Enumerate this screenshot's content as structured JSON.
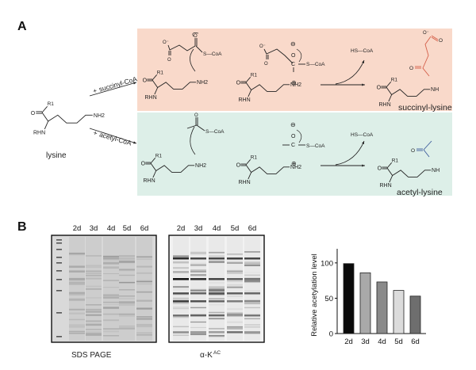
{
  "panels": {
    "a": "A",
    "b": "B"
  },
  "colors": {
    "succinyl_box": "#f9d9ca",
    "acetyl_box": "#ddefe8",
    "succinyl_text": "#d5604a",
    "acetyl_text": "#3d5c9c"
  },
  "reaction": {
    "substrate_label": "lysine",
    "succinyl_reagent": "succinyl-CoA",
    "acetyl_reagent": "acetyl-CoA",
    "plus": "+",
    "succinyl_product": "succinyl-lysine",
    "acetyl_product": "acetyl-lysine",
    "atoms": {
      "r1": "R1",
      "o": "O",
      "o_minus": "O⁻",
      "rhn": "RHN",
      "nh2": "NH2",
      "nh": "NH",
      "c": "C",
      "s_coa": "S—CoA",
      "hs_coa": "HS—CoA",
      "minus": "⊖",
      "plus": "⊕"
    }
  },
  "gels": {
    "lanes": [
      "2d",
      "3d",
      "4d",
      "5d",
      "6d"
    ],
    "sds_caption": "SDS PAGE",
    "western_caption_prefix": "α-K",
    "western_caption_sup": "AC"
  },
  "chart_data": {
    "type": "bar",
    "categories": [
      "2d",
      "3d",
      "4d",
      "5d",
      "6d"
    ],
    "values": [
      99,
      86,
      73,
      61,
      53
    ],
    "bar_colors": [
      "#0a0a0a",
      "#a9a9a9",
      "#8a8a8a",
      "#dcdcdc",
      "#6e6e6e"
    ],
    "xlabel": "",
    "ylabel": "Relative acetylation level",
    "ylim": [
      0,
      120
    ],
    "yticks": [
      0,
      50,
      100
    ],
    "grid": false
  }
}
